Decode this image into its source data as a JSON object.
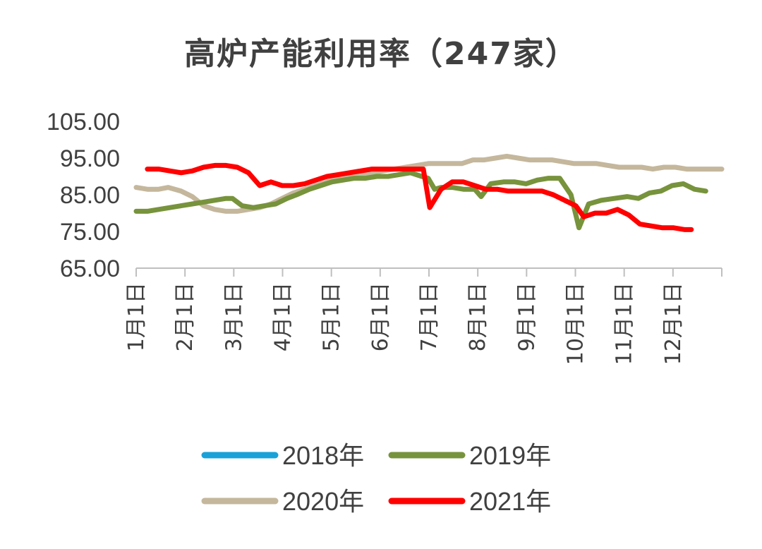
{
  "chart_data": {
    "type": "line",
    "title": "高炉产能利用率（247家）",
    "xlabel": "",
    "ylabel": "",
    "ylim": [
      65,
      105
    ],
    "yticks": [
      "105.00",
      "95.00",
      "85.00",
      "75.00",
      "65.00"
    ],
    "xticks": [
      "1月1日",
      "2月1日",
      "3月1日",
      "4月1日",
      "5月1日",
      "6月1日",
      "7月1日",
      "8月1日",
      "9月1日",
      "10月1日",
      "11月1日",
      "12月1日"
    ],
    "xlim_days": [
      0,
      365
    ],
    "grid": false,
    "legend_position": "bottom",
    "series": [
      {
        "name": "2018年",
        "color": "#19A1D8",
        "points": []
      },
      {
        "name": "2019年",
        "color": "#77933C",
        "points": [
          [
            0,
            80.5
          ],
          [
            7,
            80.5
          ],
          [
            14,
            81
          ],
          [
            21,
            81.5
          ],
          [
            28,
            82
          ],
          [
            35,
            82.5
          ],
          [
            42,
            83
          ],
          [
            49,
            83.5
          ],
          [
            56,
            84
          ],
          [
            60,
            84
          ],
          [
            66,
            82
          ],
          [
            73,
            81.5
          ],
          [
            80,
            82
          ],
          [
            87,
            82.5
          ],
          [
            94,
            84
          ],
          [
            100,
            85
          ],
          [
            108,
            86.5
          ],
          [
            115,
            87.5
          ],
          [
            122,
            88.5
          ],
          [
            129,
            89
          ],
          [
            136,
            89.5
          ],
          [
            143,
            89.5
          ],
          [
            150,
            90
          ],
          [
            157,
            90
          ],
          [
            164,
            90.5
          ],
          [
            171,
            91
          ],
          [
            178,
            90
          ],
          [
            182,
            89.5
          ],
          [
            186,
            86.5
          ],
          [
            190,
            87
          ],
          [
            197,
            87
          ],
          [
            204,
            86.5
          ],
          [
            211,
            86.5
          ],
          [
            215,
            84.5
          ],
          [
            221,
            88
          ],
          [
            229,
            88.5
          ],
          [
            236,
            88.5
          ],
          [
            243,
            88
          ],
          [
            250,
            89
          ],
          [
            257,
            89.5
          ],
          [
            264,
            89.5
          ],
          [
            271,
            85
          ],
          [
            276,
            76
          ],
          [
            282,
            82.5
          ],
          [
            290,
            83.5
          ],
          [
            298,
            84
          ],
          [
            306,
            84.5
          ],
          [
            313,
            84
          ],
          [
            320,
            85.5
          ],
          [
            327,
            86
          ],
          [
            334,
            87.5
          ],
          [
            341,
            88
          ],
          [
            348,
            86.5
          ],
          [
            355,
            86
          ]
        ]
      },
      {
        "name": "2020年",
        "color": "#C4B79C",
        "points": [
          [
            0,
            87
          ],
          [
            7,
            86.5
          ],
          [
            14,
            86.5
          ],
          [
            20,
            87
          ],
          [
            28,
            86
          ],
          [
            35,
            84.5
          ],
          [
            42,
            82
          ],
          [
            49,
            81
          ],
          [
            56,
            80.5
          ],
          [
            63,
            80.5
          ],
          [
            70,
            81
          ],
          [
            77,
            81.5
          ],
          [
            84,
            82.5
          ],
          [
            91,
            84
          ],
          [
            98,
            85.5
          ],
          [
            105,
            86.5
          ],
          [
            112,
            87.5
          ],
          [
            119,
            88.5
          ],
          [
            126,
            89.5
          ],
          [
            133,
            90
          ],
          [
            140,
            90.5
          ],
          [
            147,
            91
          ],
          [
            154,
            91.5
          ],
          [
            161,
            92
          ],
          [
            168,
            92.5
          ],
          [
            175,
            93
          ],
          [
            182,
            93.5
          ],
          [
            189,
            93.5
          ],
          [
            196,
            93.5
          ],
          [
            203,
            93.5
          ],
          [
            210,
            94.5
          ],
          [
            217,
            94.5
          ],
          [
            224,
            95
          ],
          [
            231,
            95.5
          ],
          [
            238,
            95
          ],
          [
            245,
            94.5
          ],
          [
            252,
            94.5
          ],
          [
            259,
            94.5
          ],
          [
            266,
            94
          ],
          [
            273,
            93.5
          ],
          [
            280,
            93.5
          ],
          [
            287,
            93.5
          ],
          [
            294,
            93
          ],
          [
            301,
            92.5
          ],
          [
            308,
            92.5
          ],
          [
            315,
            92.5
          ],
          [
            322,
            92
          ],
          [
            329,
            92.5
          ],
          [
            336,
            92.5
          ],
          [
            343,
            92
          ],
          [
            350,
            92
          ],
          [
            357,
            92
          ],
          [
            365,
            92
          ]
        ]
      },
      {
        "name": "2021年",
        "color": "#FF0000",
        "points": [
          [
            7,
            92
          ],
          [
            14,
            92
          ],
          [
            21,
            91.5
          ],
          [
            28,
            91
          ],
          [
            35,
            91.5
          ],
          [
            42,
            92.5
          ],
          [
            49,
            93
          ],
          [
            56,
            93
          ],
          [
            63,
            92.5
          ],
          [
            70,
            91
          ],
          [
            77,
            87.5
          ],
          [
            84,
            88.5
          ],
          [
            91,
            87.5
          ],
          [
            98,
            87.5
          ],
          [
            105,
            88
          ],
          [
            112,
            89
          ],
          [
            119,
            90
          ],
          [
            126,
            90.5
          ],
          [
            133,
            91
          ],
          [
            140,
            91.5
          ],
          [
            147,
            92
          ],
          [
            154,
            92
          ],
          [
            161,
            92
          ],
          [
            168,
            92
          ],
          [
            175,
            92
          ],
          [
            179,
            92
          ],
          [
            183,
            81.5
          ],
          [
            190,
            86.5
          ],
          [
            197,
            88.5
          ],
          [
            204,
            88.5
          ],
          [
            211,
            87.5
          ],
          [
            218,
            86.5
          ],
          [
            225,
            86.5
          ],
          [
            232,
            86
          ],
          [
            239,
            86
          ],
          [
            246,
            86
          ],
          [
            253,
            86
          ],
          [
            260,
            85
          ],
          [
            267,
            83.5
          ],
          [
            274,
            82
          ],
          [
            279,
            79
          ],
          [
            286,
            80
          ],
          [
            293,
            80
          ],
          [
            300,
            81
          ],
          [
            307,
            79.5
          ],
          [
            314,
            77
          ],
          [
            321,
            76.5
          ],
          [
            328,
            76
          ],
          [
            335,
            76
          ],
          [
            342,
            75.5
          ],
          [
            346,
            75.5
          ]
        ]
      }
    ]
  }
}
